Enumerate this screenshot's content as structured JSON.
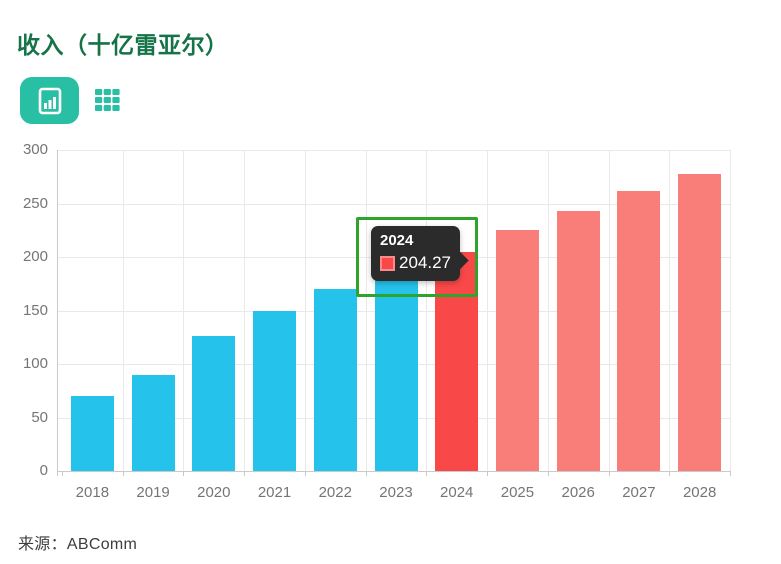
{
  "header": {
    "title": "收入（十亿雷亚尔）"
  },
  "toolbar": {
    "chart_view_icon": "bar-chart-icon",
    "table_view_icon": "table-icon"
  },
  "colors": {
    "historical": "#25c2ec",
    "highlight": "#f94848",
    "forecast": "#f97d78",
    "accent": "#29bfa4",
    "title": "#157347",
    "annotation_box": "#2fa42c",
    "tooltip_bg": "#2b2b2b",
    "swatch_border": "#fb8b8b",
    "axis_text": "#757575",
    "source_text": "#3d3d3d"
  },
  "chart_data": {
    "type": "bar",
    "title": "收入（十亿雷亚尔）",
    "categories": [
      "2018",
      "2019",
      "2020",
      "2021",
      "2022",
      "2023",
      "2024",
      "2025",
      "2026",
      "2027",
      "2028"
    ],
    "values": [
      70,
      90,
      126,
      150,
      170,
      186,
      204.27,
      225,
      243,
      262,
      278
    ],
    "bar_groups": [
      "historical",
      "historical",
      "historical",
      "historical",
      "historical",
      "historical",
      "highlight",
      "forecast",
      "forecast",
      "forecast",
      "forecast"
    ],
    "xlabel": "",
    "ylabel": "",
    "ylim": [
      0,
      300
    ],
    "yticks": [
      0,
      50,
      100,
      150,
      200,
      250,
      300
    ],
    "grid": true,
    "legend": "none",
    "highlighted_category": "2024"
  },
  "tooltip": {
    "title": "2024",
    "value": "204.27"
  },
  "source": {
    "text": "来源：ABComm"
  }
}
